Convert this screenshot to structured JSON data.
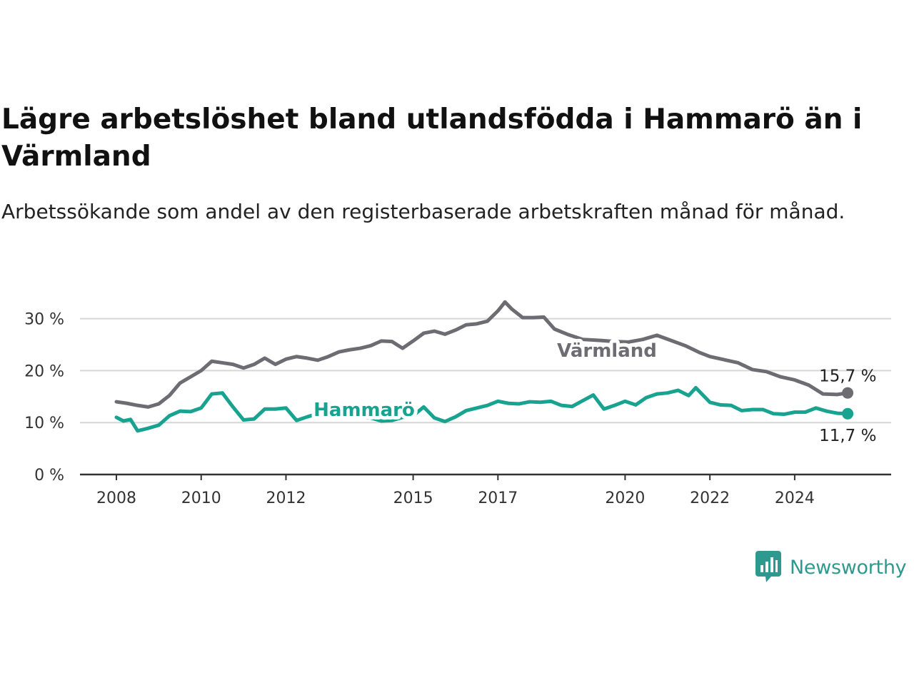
{
  "title": "Lägre arbetslöshet bland utlandsfödda i Hammarö än i Värmland",
  "subtitle": "Arbetssökande som andel av den registerbaserade arbetskraften månad för månad.",
  "brand": {
    "name": "Newsworthy",
    "color": "#2e9a8f",
    "icon": "newsworthy-logo-icon"
  },
  "chart_data": {
    "type": "line",
    "ylim": [
      0,
      32
    ],
    "xlim": [
      "2008-01",
      "2025-06"
    ],
    "yticks": [
      {
        "value": 0,
        "label": "0 %"
      },
      {
        "value": 10,
        "label": "10 %"
      },
      {
        "value": 20,
        "label": "20 %"
      },
      {
        "value": 30,
        "label": "30 %"
      }
    ],
    "xticks": [
      {
        "value": "2008-01",
        "label": "2008"
      },
      {
        "value": "2010-01",
        "label": "2010"
      },
      {
        "value": "2012-01",
        "label": "2012"
      },
      {
        "value": "2015-01",
        "label": "2015"
      },
      {
        "value": "2017-01",
        "label": "2017"
      },
      {
        "value": "2020-01",
        "label": "2020"
      },
      {
        "value": "2022-01",
        "label": "2022"
      },
      {
        "value": "2024-01",
        "label": "2024"
      }
    ],
    "grid": true,
    "series": [
      {
        "name": "Värmland",
        "color": "#6e6c73",
        "end_label": "15,7 %",
        "points": [
          [
            "2008-01",
            14.0
          ],
          [
            "2008-04",
            13.7
          ],
          [
            "2008-07",
            13.3
          ],
          [
            "2008-10",
            13.0
          ],
          [
            "2009-01",
            13.6
          ],
          [
            "2009-04",
            15.2
          ],
          [
            "2009-07",
            17.6
          ],
          [
            "2009-10",
            18.8
          ],
          [
            "2010-01",
            20.0
          ],
          [
            "2010-04",
            21.8
          ],
          [
            "2010-07",
            21.5
          ],
          [
            "2010-10",
            21.2
          ],
          [
            "2011-01",
            20.5
          ],
          [
            "2011-04",
            21.2
          ],
          [
            "2011-07",
            22.4
          ],
          [
            "2011-10",
            21.2
          ],
          [
            "2012-01",
            22.2
          ],
          [
            "2012-04",
            22.7
          ],
          [
            "2012-07",
            22.4
          ],
          [
            "2012-10",
            22.0
          ],
          [
            "2013-01",
            22.7
          ],
          [
            "2013-04",
            23.6
          ],
          [
            "2013-07",
            24.0
          ],
          [
            "2013-10",
            24.3
          ],
          [
            "2014-01",
            24.8
          ],
          [
            "2014-04",
            25.7
          ],
          [
            "2014-07",
            25.6
          ],
          [
            "2014-10",
            24.3
          ],
          [
            "2015-01",
            25.7
          ],
          [
            "2015-04",
            27.2
          ],
          [
            "2015-07",
            27.6
          ],
          [
            "2015-10",
            27.0
          ],
          [
            "2016-01",
            27.8
          ],
          [
            "2016-04",
            28.8
          ],
          [
            "2016-07",
            29.0
          ],
          [
            "2016-10",
            29.5
          ],
          [
            "2017-01",
            31.5
          ],
          [
            "2017-03",
            33.2
          ],
          [
            "2017-05",
            31.8
          ],
          [
            "2017-08",
            30.2
          ],
          [
            "2017-11",
            30.2
          ],
          [
            "2018-02",
            30.3
          ],
          [
            "2018-05",
            28.0
          ],
          [
            "2018-09",
            26.9
          ],
          [
            "2019-01",
            26.0
          ],
          [
            "2019-06",
            25.8
          ],
          [
            "2019-10",
            25.6
          ],
          [
            "2020-02",
            25.5
          ],
          [
            "2020-06",
            26.0
          ],
          [
            "2020-10",
            26.8
          ],
          [
            "2021-02",
            25.8
          ],
          [
            "2021-06",
            24.8
          ],
          [
            "2021-10",
            23.5
          ],
          [
            "2022-01",
            22.7
          ],
          [
            "2022-05",
            22.1
          ],
          [
            "2022-09",
            21.5
          ],
          [
            "2023-01",
            20.2
          ],
          [
            "2023-05",
            19.8
          ],
          [
            "2023-09",
            18.8
          ],
          [
            "2024-01",
            18.2
          ],
          [
            "2024-05",
            17.2
          ],
          [
            "2024-09",
            15.5
          ],
          [
            "2025-01",
            15.4
          ],
          [
            "2025-04",
            15.7
          ]
        ]
      },
      {
        "name": "Hammarö",
        "color": "#18a391",
        "end_label": "11,7 %",
        "points": [
          [
            "2008-01",
            11.0
          ],
          [
            "2008-03",
            10.3
          ],
          [
            "2008-05",
            10.6
          ],
          [
            "2008-07",
            8.4
          ],
          [
            "2008-10",
            8.9
          ],
          [
            "2009-01",
            9.5
          ],
          [
            "2009-04",
            11.3
          ],
          [
            "2009-07",
            12.2
          ],
          [
            "2009-10",
            12.1
          ],
          [
            "2010-01",
            12.8
          ],
          [
            "2010-04",
            15.5
          ],
          [
            "2010-07",
            15.7
          ],
          [
            "2010-10",
            13.0
          ],
          [
            "2011-01",
            10.5
          ],
          [
            "2011-04",
            10.7
          ],
          [
            "2011-07",
            12.6
          ],
          [
            "2011-10",
            12.6
          ],
          [
            "2012-01",
            12.8
          ],
          [
            "2012-04",
            10.4
          ],
          [
            "2012-07",
            11.1
          ],
          [
            "2012-10",
            11.7
          ],
          [
            "2014-01",
            10.9
          ],
          [
            "2014-04",
            10.3
          ],
          [
            "2014-07",
            10.4
          ],
          [
            "2014-10",
            11.0
          ],
          [
            "2015-01",
            11.3
          ],
          [
            "2015-04",
            13.0
          ],
          [
            "2015-07",
            10.9
          ],
          [
            "2015-10",
            10.2
          ],
          [
            "2016-01",
            11.1
          ],
          [
            "2016-04",
            12.3
          ],
          [
            "2016-07",
            12.8
          ],
          [
            "2016-10",
            13.3
          ],
          [
            "2017-01",
            14.1
          ],
          [
            "2017-04",
            13.7
          ],
          [
            "2017-07",
            13.6
          ],
          [
            "2017-10",
            14.0
          ],
          [
            "2018-01",
            13.9
          ],
          [
            "2018-04",
            14.1
          ],
          [
            "2018-07",
            13.3
          ],
          [
            "2018-10",
            13.1
          ],
          [
            "2019-01",
            14.2
          ],
          [
            "2019-04",
            15.3
          ],
          [
            "2019-07",
            12.6
          ],
          [
            "2019-10",
            13.3
          ],
          [
            "2020-01",
            14.1
          ],
          [
            "2020-04",
            13.4
          ],
          [
            "2020-07",
            14.8
          ],
          [
            "2020-10",
            15.5
          ],
          [
            "2021-01",
            15.7
          ],
          [
            "2021-04",
            16.2
          ],
          [
            "2021-07",
            15.2
          ],
          [
            "2021-09",
            16.7
          ],
          [
            "2022-01",
            13.9
          ],
          [
            "2022-04",
            13.4
          ],
          [
            "2022-07",
            13.3
          ],
          [
            "2022-10",
            12.3
          ],
          [
            "2023-01",
            12.5
          ],
          [
            "2023-04",
            12.5
          ],
          [
            "2023-07",
            11.7
          ],
          [
            "2023-10",
            11.6
          ],
          [
            "2024-01",
            12.0
          ],
          [
            "2024-04",
            12.0
          ],
          [
            "2024-07",
            12.8
          ],
          [
            "2024-10",
            12.2
          ],
          [
            "2025-01",
            11.8
          ],
          [
            "2025-04",
            11.7
          ]
        ]
      }
    ]
  }
}
